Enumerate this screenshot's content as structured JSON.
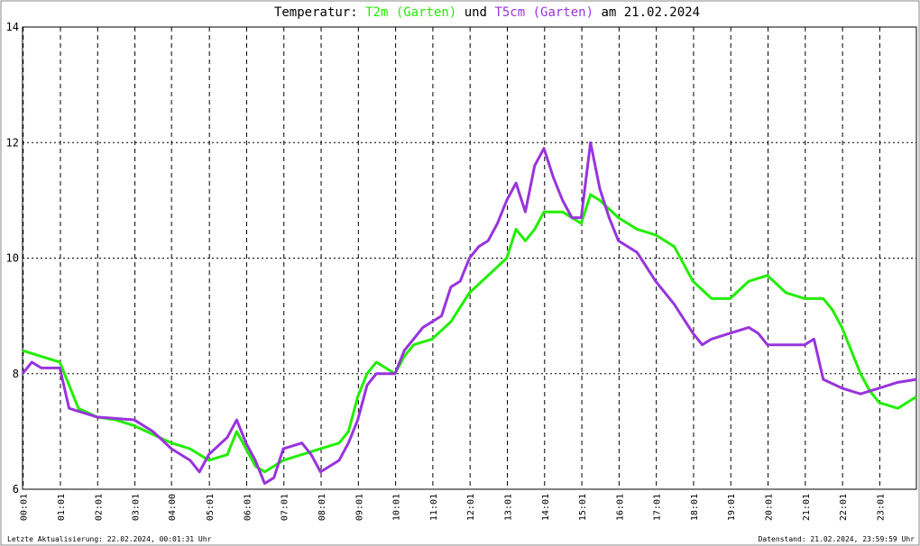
{
  "chart_data": {
    "type": "line",
    "title_parts": [
      "Temperatur:",
      "und",
      "am 21.02.2024"
    ],
    "footer_left": "Letzte Aktualisierung: 22.02.2024, 00:01:31 Uhr",
    "footer_right": "Datenstand: 21.02.2024, 23:59:59 Uhr",
    "xlim": [
      0,
      24
    ],
    "ylim": [
      6,
      14
    ],
    "yticks": [
      6,
      8,
      10,
      12,
      14
    ],
    "xticks": [
      {
        "value": 0.017,
        "label": "00:01"
      },
      {
        "value": 1.017,
        "label": "01:01"
      },
      {
        "value": 2.017,
        "label": "02:01"
      },
      {
        "value": 3.017,
        "label": "03:01"
      },
      {
        "value": 4.0,
        "label": "04:00"
      },
      {
        "value": 5.017,
        "label": "05:01"
      },
      {
        "value": 6.017,
        "label": "06:01"
      },
      {
        "value": 7.017,
        "label": "07:01"
      },
      {
        "value": 8.017,
        "label": "08:01"
      },
      {
        "value": 9.017,
        "label": "09:01"
      },
      {
        "value": 10.017,
        "label": "10:01"
      },
      {
        "value": 11.017,
        "label": "11:01"
      },
      {
        "value": 12.017,
        "label": "12:01"
      },
      {
        "value": 13.017,
        "label": "13:01"
      },
      {
        "value": 14.017,
        "label": "14:01"
      },
      {
        "value": 15.017,
        "label": "15:01"
      },
      {
        "value": 16.017,
        "label": "16:01"
      },
      {
        "value": 17.017,
        "label": "17:01"
      },
      {
        "value": 18.017,
        "label": "18:01"
      },
      {
        "value": 19.017,
        "label": "19:01"
      },
      {
        "value": 20.017,
        "label": "20:01"
      },
      {
        "value": 21.017,
        "label": "21:01"
      },
      {
        "value": 22.017,
        "label": "22:01"
      },
      {
        "value": 23.017,
        "label": "23:01"
      }
    ],
    "grid": true,
    "series": [
      {
        "name": "T2m (Garten)",
        "color": "#22ee00",
        "x": [
          0,
          0.5,
          1,
          1.25,
          1.5,
          2,
          2.5,
          3,
          3.5,
          4,
          4.5,
          5,
          5.5,
          5.75,
          6,
          6.25,
          6.5,
          7,
          7.5,
          8,
          8.5,
          8.75,
          9,
          9.25,
          9.5,
          10,
          10.25,
          10.5,
          11,
          11.5,
          12,
          12.5,
          13,
          13.25,
          13.5,
          13.75,
          14,
          14.5,
          15,
          15.25,
          15.5,
          16,
          16.5,
          17,
          17.5,
          18,
          18.5,
          19,
          19.5,
          20,
          20.5,
          21,
          21.5,
          21.75,
          22,
          22.25,
          22.5,
          22.75,
          23,
          23.5,
          24
        ],
        "values": [
          8.4,
          8.3,
          8.2,
          7.8,
          7.4,
          7.25,
          7.2,
          7.1,
          6.95,
          6.8,
          6.7,
          6.5,
          6.6,
          7.0,
          6.7,
          6.4,
          6.3,
          6.5,
          6.6,
          6.7,
          6.8,
          7.0,
          7.6,
          8.0,
          8.2,
          8.0,
          8.3,
          8.5,
          8.6,
          8.9,
          9.4,
          9.7,
          10.0,
          10.5,
          10.3,
          10.5,
          10.8,
          10.8,
          10.6,
          11.1,
          11.0,
          10.7,
          10.5,
          10.4,
          10.2,
          9.6,
          9.3,
          9.3,
          9.6,
          9.7,
          9.4,
          9.3,
          9.3,
          9.1,
          8.8,
          8.4,
          8.0,
          7.7,
          7.5,
          7.4,
          7.6
        ]
      },
      {
        "name": "T5cm (Garten)",
        "color": "#9933dd",
        "x": [
          0,
          0.25,
          0.5,
          1,
          1.25,
          1.5,
          2,
          3,
          3.5,
          4,
          4.5,
          4.75,
          5,
          5.5,
          5.75,
          6,
          6.25,
          6.5,
          6.75,
          7,
          7.5,
          7.75,
          8,
          8.25,
          8.5,
          8.75,
          9,
          9.25,
          9.5,
          10,
          10.25,
          10.5,
          10.75,
          11,
          11.25,
          11.5,
          11.75,
          12,
          12.25,
          12.5,
          12.75,
          13,
          13.25,
          13.5,
          13.75,
          14,
          14.25,
          14.5,
          14.75,
          15,
          15.25,
          15.5,
          15.75,
          16,
          16.5,
          17,
          17.5,
          18,
          18.25,
          18.5,
          19,
          19.5,
          19.75,
          20,
          20.5,
          21,
          21.25,
          21.5,
          22,
          22.5,
          23,
          23.5,
          24
        ],
        "values": [
          8.0,
          8.2,
          8.1,
          8.1,
          7.4,
          7.35,
          7.25,
          7.2,
          7.0,
          6.7,
          6.5,
          6.3,
          6.6,
          6.9,
          7.2,
          6.8,
          6.5,
          6.1,
          6.2,
          6.7,
          6.8,
          6.6,
          6.3,
          6.4,
          6.5,
          6.8,
          7.2,
          7.8,
          8.0,
          8.0,
          8.4,
          8.6,
          8.8,
          8.9,
          9.0,
          9.5,
          9.6,
          10.0,
          10.2,
          10.3,
          10.6,
          11.0,
          11.3,
          10.8,
          11.6,
          11.9,
          11.4,
          11.0,
          10.7,
          10.7,
          12.0,
          11.2,
          10.7,
          10.3,
          10.1,
          9.6,
          9.2,
          8.7,
          8.5,
          8.6,
          8.7,
          8.8,
          8.7,
          8.5,
          8.5,
          8.5,
          8.6,
          7.9,
          7.75,
          7.65,
          7.75,
          7.85,
          7.9
        ]
      }
    ]
  }
}
